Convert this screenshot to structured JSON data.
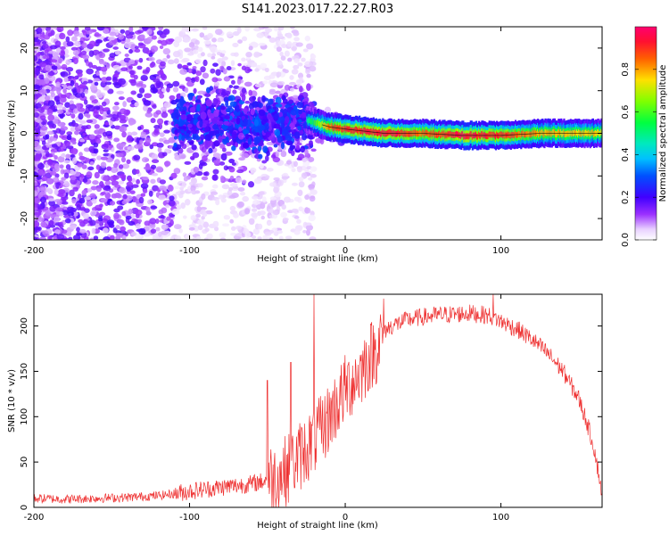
{
  "chart_data": [
    {
      "type": "heatmap",
      "title": "S141.2023.017.22.27.R03",
      "xlabel": "Height of straight line (km)",
      "ylabel": "Frequency (Hz)",
      "xlim": [
        -200,
        165
      ],
      "ylim": [
        -25,
        25
      ],
      "x_ticks": [
        -200,
        -100,
        0,
        100
      ],
      "y_ticks": [
        -20,
        -10,
        0,
        10,
        20
      ],
      "colorbar": {
        "label": "Normalized spectral amplitude",
        "range": [
          0,
          1
        ],
        "ticks": [
          0.0,
          0.2,
          0.4,
          0.6,
          0.8
        ],
        "colors": [
          "#ffffff",
          "#9b30ff",
          "#4000ff",
          "#0080ff",
          "#00e0e0",
          "#00ff40",
          "#c0ff00",
          "#ffd000",
          "#ff4000",
          "#ff0060"
        ]
      },
      "signal_track": {
        "description_points_x": [
          -200,
          -150,
          -100,
          -60,
          -25,
          -10,
          0,
          25,
          50,
          75,
          100,
          125,
          165
        ],
        "center_frequency_hz": [
          0,
          0,
          3,
          2,
          3,
          1.5,
          1,
          0,
          0,
          -0.5,
          -0.5,
          0,
          0
        ],
        "peak_amplitude": [
          0.15,
          0.2,
          0.3,
          0.35,
          0.45,
          0.85,
          0.9,
          0.95,
          0.85,
          0.95,
          0.9,
          0.8,
          0.75
        ]
      }
    },
    {
      "type": "line",
      "xlabel": "Height of straight line (km)",
      "ylabel": "SNR (10 * v/v)",
      "xlim": [
        -200,
        165
      ],
      "ylim": [
        0,
        235
      ],
      "x_ticks": [
        -200,
        -100,
        0,
        100
      ],
      "y_ticks": [
        0,
        50,
        100,
        150,
        200
      ],
      "line_color": "#ee3030",
      "series": [
        {
          "x": [
            -200,
            -180,
            -160,
            -140,
            -120,
            -110,
            -100,
            -90,
            -80,
            -70,
            -60,
            -50,
            -40,
            -35,
            -30,
            -25,
            -20,
            -15,
            -10,
            -5,
            0,
            5,
            10,
            15,
            20,
            25,
            30,
            40,
            50,
            60,
            70,
            80,
            90,
            95,
            100,
            110,
            120,
            130,
            140,
            150,
            155,
            160,
            165
          ],
          "values": [
            10,
            9,
            10,
            11,
            13,
            15,
            18,
            20,
            22,
            24,
            26,
            30,
            38,
            45,
            55,
            65,
            75,
            85,
            100,
            115,
            130,
            140,
            150,
            165,
            175,
            195,
            200,
            207,
            210,
            212,
            213,
            214,
            212,
            210,
            205,
            197,
            185,
            170,
            150,
            120,
            95,
            65,
            15
          ],
          "spikes": [
            [
              -20,
              235
            ],
            [
              95,
              235
            ],
            [
              -35,
              160
            ],
            [
              -50,
              140
            ]
          ]
        }
      ]
    }
  ]
}
